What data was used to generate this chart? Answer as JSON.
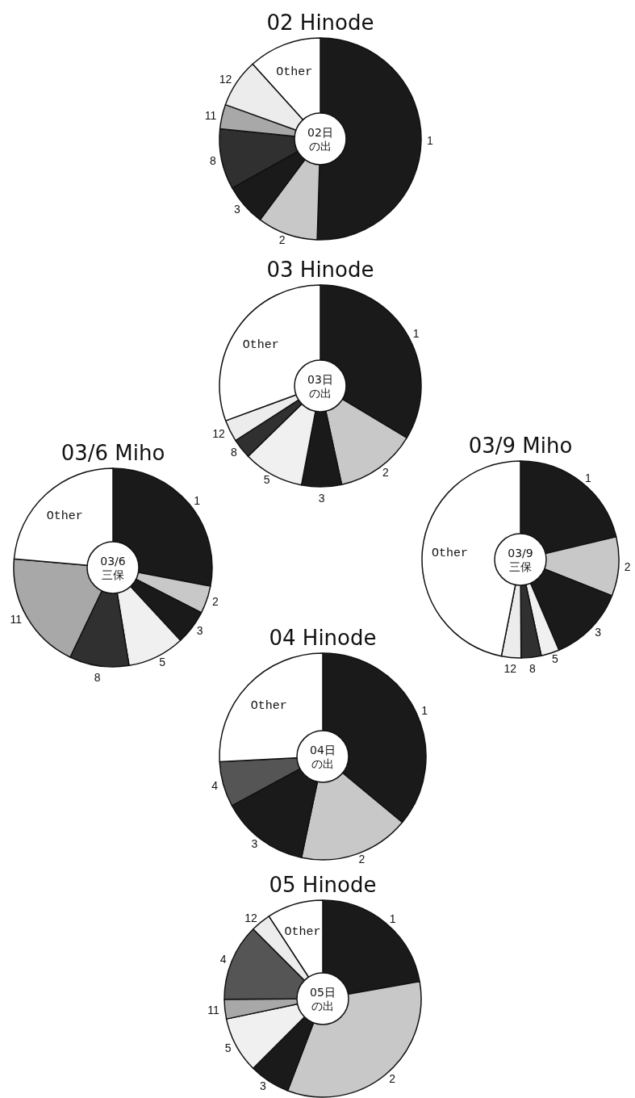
{
  "chart_data": [
    {
      "type": "donut",
      "title": "02 Hinode",
      "annotations": [
        "02日",
        "の出"
      ],
      "categories": [
        "1",
        "2",
        "3",
        "8",
        "11",
        "12",
        "Other"
      ],
      "values": [
        50.5,
        9.7,
        6.7,
        9.7,
        3.9,
        7.8,
        11.7
      ],
      "colors": [
        "#1a1a1a",
        "#c8c8c8",
        "#1a1a1a",
        "#303030",
        "#a8a8a8",
        "#ececec",
        "#ffffff"
      ]
    },
    {
      "type": "donut",
      "title": "03 Hinode",
      "annotations": [
        "03日",
        "の出"
      ],
      "categories": [
        "1",
        "2",
        "3",
        "5",
        "8",
        "12",
        "Other"
      ],
      "values": [
        33.6,
        13,
        6.4,
        9.7,
        3.2,
        3.5,
        30.6
      ],
      "colors": [
        "#1a1a1a",
        "#c8c8c8",
        "#1a1a1a",
        "#f0f0f0",
        "#303030",
        "#ececec",
        "#ffffff"
      ]
    },
    {
      "type": "donut",
      "title": "03/6 Miho",
      "annotations": [
        "03/6",
        "三保"
      ],
      "categories": [
        "1",
        "2",
        "3",
        "5",
        "8",
        "11",
        "Other"
      ],
      "values": [
        28,
        4.5,
        5.6,
        9.3,
        9.7,
        19.3,
        23.6
      ],
      "colors": [
        "#1a1a1a",
        "#c8c8c8",
        "#1a1a1a",
        "#f0f0f0",
        "#303030",
        "#a8a8a8",
        "#ffffff"
      ]
    },
    {
      "type": "donut",
      "title": "03/9 Miho",
      "annotations": [
        "03/9",
        "三保"
      ],
      "categories": [
        "1",
        "2",
        "3",
        "5",
        "8",
        "12",
        "Other"
      ],
      "values": [
        21.3,
        9.7,
        12.6,
        3,
        3.3,
        3.2,
        46.9
      ],
      "colors": [
        "#1a1a1a",
        "#c8c8c8",
        "#1a1a1a",
        "#f0f0f0",
        "#303030",
        "#ececec",
        "#ffffff"
      ]
    },
    {
      "type": "donut",
      "title": "04 Hinode",
      "annotations": [
        "04日",
        "の出"
      ],
      "categories": [
        "1",
        "2",
        "3",
        "4",
        "Other"
      ],
      "values": [
        36,
        17.3,
        13.8,
        7.1,
        25.8
      ],
      "colors": [
        "#1a1a1a",
        "#c8c8c8",
        "#1a1a1a",
        "#555555",
        "#ffffff"
      ]
    },
    {
      "type": "donut",
      "title": "05 Hinode",
      "annotations": [
        "05日",
        "の出"
      ],
      "categories": [
        "1",
        "2",
        "3",
        "5",
        "11",
        "4",
        "12",
        "Other"
      ],
      "values": [
        22.2,
        33.6,
        6.7,
        9.2,
        3.2,
        12.6,
        3.3,
        9.2
      ],
      "colors": [
        "#1a1a1a",
        "#c8c8c8",
        "#1a1a1a",
        "#f0f0f0",
        "#a8a8a8",
        "#555555",
        "#ececec",
        "#ffffff"
      ]
    }
  ]
}
